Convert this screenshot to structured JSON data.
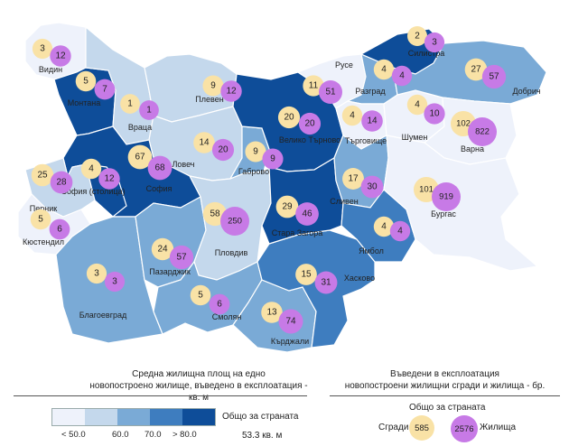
{
  "colors": {
    "bin1": "#eef2fb",
    "bin2": "#c4d8ec",
    "bin3": "#7aaad6",
    "bin4": "#3e7dbf",
    "bin5": "#0e4d99",
    "buildings": "#f9e2a6",
    "dwellings": "#c77ae6"
  },
  "regions": [
    {
      "id": "vidin",
      "name": "Видин",
      "bin": 1,
      "buildings": "3",
      "dwellings": "12"
    },
    {
      "id": "montana",
      "name": "Монтана",
      "bin": 5,
      "buildings": "5",
      "dwellings": "7"
    },
    {
      "id": "vratsa",
      "name": "Враца",
      "bin": 2,
      "buildings": "1",
      "dwellings": "1"
    },
    {
      "id": "pleven",
      "name": "Плевен",
      "bin": 2,
      "buildings": "9",
      "dwellings": "12"
    },
    {
      "id": "lovech",
      "name": "Ловеч",
      "bin": 2,
      "buildings": "14",
      "dwellings": "20"
    },
    {
      "id": "veliko-tarnovo",
      "name": "Велико Търново",
      "bin": 5,
      "buildings": "20",
      "dwellings": "20"
    },
    {
      "id": "gabrovo",
      "name": "Габрово",
      "bin": 3,
      "buildings": "9",
      "dwellings": "9"
    },
    {
      "id": "ruse",
      "name": "Русе",
      "bin": 1,
      "buildings": "11",
      "dwellings": "51"
    },
    {
      "id": "razgrad",
      "name": "Разград",
      "bin": 3,
      "buildings": "4",
      "dwellings": "4"
    },
    {
      "id": "silistra",
      "name": "Силистра",
      "bin": 5,
      "buildings": "2",
      "dwellings": "3"
    },
    {
      "id": "targovishte",
      "name": "Търговище",
      "bin": 1,
      "buildings": "4",
      "dwellings": "14"
    },
    {
      "id": "shumen",
      "name": "Шумен",
      "bin": 1,
      "buildings": "4",
      "dwellings": "10"
    },
    {
      "id": "dobrich",
      "name": "Добрич",
      "bin": 3,
      "buildings": "27",
      "dwellings": "57"
    },
    {
      "id": "varna",
      "name": "Варна",
      "bin": 1,
      "buildings": "102",
      "dwellings": "822"
    },
    {
      "id": "sofia-city",
      "name": "София (столица)",
      "bin": 5,
      "buildings": "4",
      "dwellings": "12"
    },
    {
      "id": "sofia",
      "name": "София",
      "bin": 5,
      "buildings": "67",
      "dwellings": "68"
    },
    {
      "id": "pernik",
      "name": "Перник",
      "bin": 2,
      "buildings": "25",
      "dwellings": "28"
    },
    {
      "id": "kyustendil",
      "name": "Кюстендил",
      "bin": 1,
      "buildings": "5",
      "dwellings": "6"
    },
    {
      "id": "blagoevgrad",
      "name": "Благоевград",
      "bin": 3,
      "buildings": "3",
      "dwellings": "3"
    },
    {
      "id": "pazardzhik",
      "name": "Пазарджик",
      "bin": 3,
      "buildings": "24",
      "dwellings": "57"
    },
    {
      "id": "plovdiv",
      "name": "Пловдив",
      "bin": 2,
      "buildings": "58",
      "dwellings": "250"
    },
    {
      "id": "smolyan",
      "name": "Смолян",
      "bin": 3,
      "buildings": "5",
      "dwellings": "6"
    },
    {
      "id": "kardzhali",
      "name": "Кърджали",
      "bin": 3,
      "buildings": "13",
      "dwellings": "74"
    },
    {
      "id": "haskovo",
      "name": "Хасково",
      "bin": 4,
      "buildings": "15",
      "dwellings": "31"
    },
    {
      "id": "stara-zagora",
      "name": "Стара Загора",
      "bin": 5,
      "buildings": "29",
      "dwellings": "46"
    },
    {
      "id": "sliven",
      "name": "Сливен",
      "bin": 3,
      "buildings": "17",
      "dwellings": "30"
    },
    {
      "id": "yambol",
      "name": "Ямбол",
      "bin": 4,
      "buildings": "4",
      "dwellings": "4"
    },
    {
      "id": "burgas",
      "name": "Бургас",
      "bin": 1,
      "buildings": "101",
      "dwellings": "919"
    }
  ],
  "captions": {
    "left_line1": "Средна жилищна площ на едно",
    "left_line2": "новопостроено жилище, въведено в експлоатация - кв. м",
    "right_line1": "Въведени в експлоатация",
    "right_line2": "новопостроени жилищни сгради и жилища - бр."
  },
  "legend": {
    "ticks": [
      "< 50.0",
      "60.0",
      "70.0",
      "> 80.0"
    ],
    "total_label": "Общо за страната",
    "total_value": "53.3 кв. м",
    "right_title": "Общо за страната",
    "buildings_label": "Сгради",
    "dwellings_label": "Жилища",
    "buildings_total": "585",
    "dwellings_total": "2576"
  }
}
